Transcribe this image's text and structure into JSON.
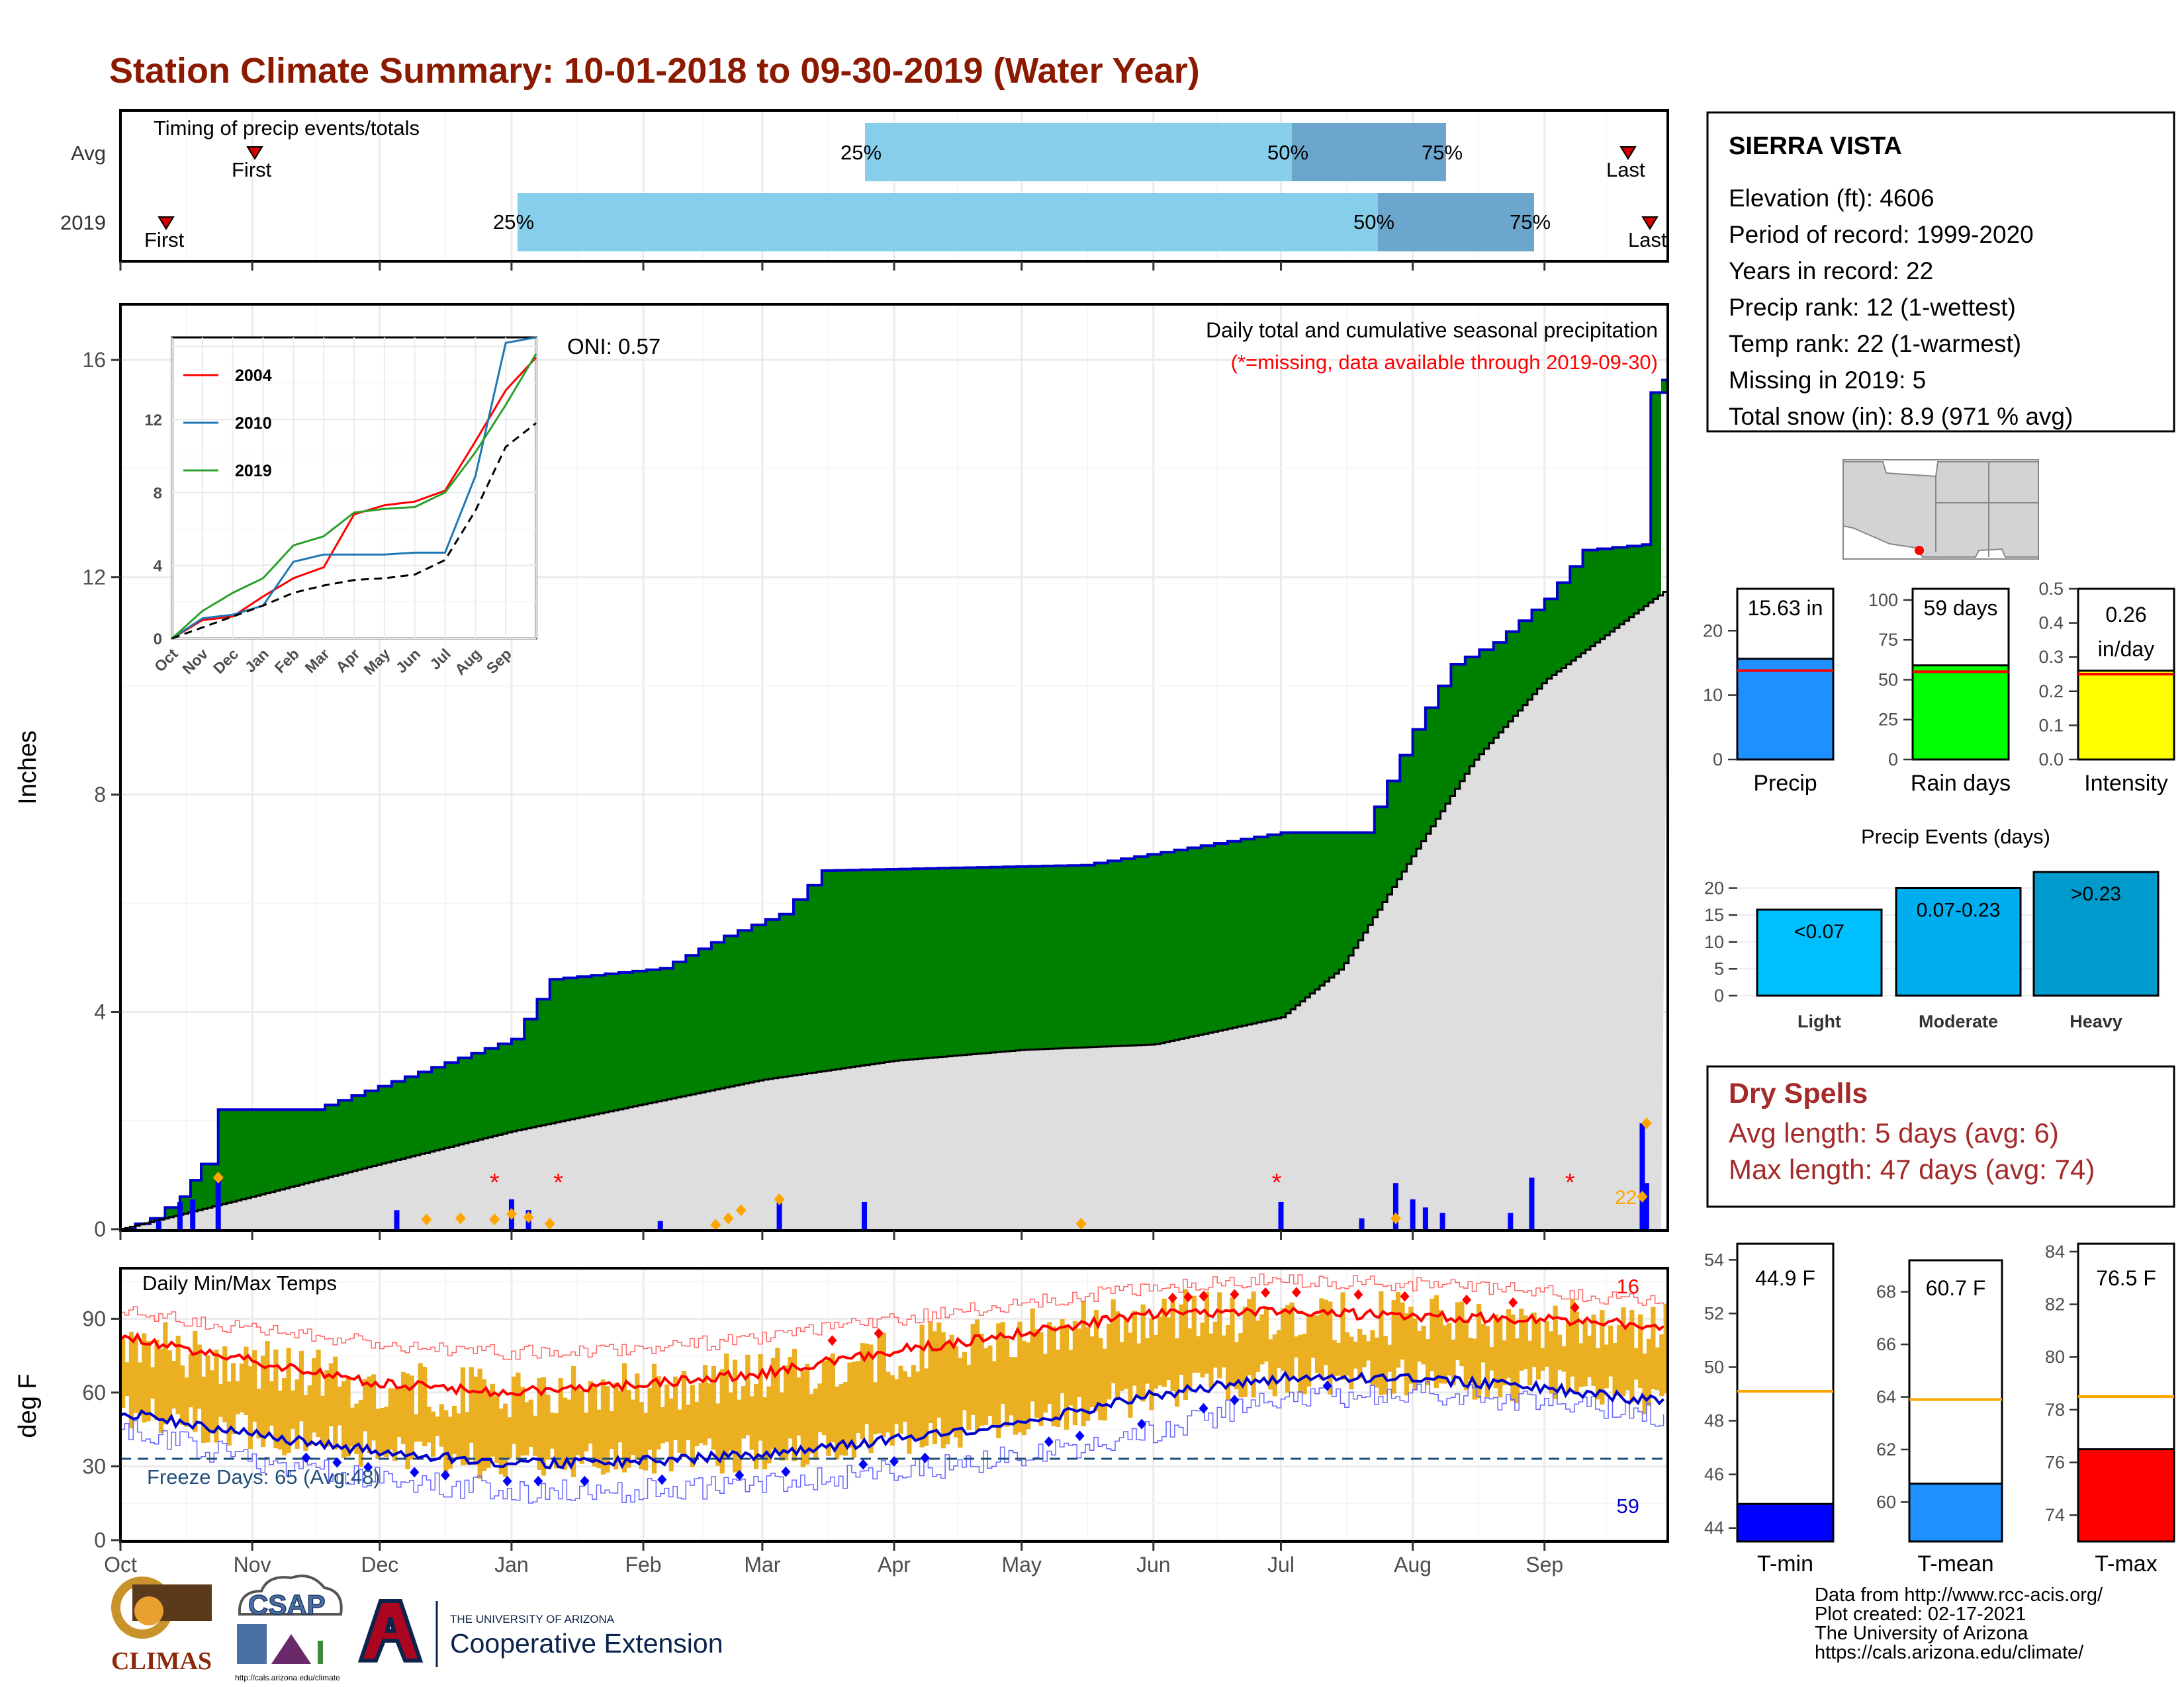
{
  "title": "Station Climate Summary: 10-01-2018 to 09-30-2019 (Water Year)",
  "colors": {
    "title": "#8B1A00",
    "precip_fill": "#008000",
    "precip_line": "#0000CC",
    "avg_fill": "#DEDEDE",
    "bar25": "#87CEEB",
    "bar50": "#6CA6CD",
    "temp_bar": "#EAB022",
    "tmax_avg": "#FF0000",
    "tmin_avg": "#0000CC",
    "dry_spell": "#A52A2A",
    "freeze_line": "#1F4E79"
  },
  "timing_panel": {
    "label": "Timing of precip events/totals",
    "rows": [
      {
        "name": "Avg",
        "first_label": "First",
        "last_label": "Last",
        "p25": "25%",
        "p50": "50%",
        "p75": "75%"
      },
      {
        "name": "2019",
        "first_label": "First",
        "last_label": "Last",
        "p25": "25%",
        "p50": "50%",
        "p75": "75%"
      }
    ]
  },
  "station": {
    "name": "SIERRA VISTA",
    "lines": [
      "Elevation (ft): 4606",
      "Period of record: 1999-2020",
      "Years in record: 22",
      "Precip rank: 12 (1-wettest)",
      "Temp rank: 22 (1-warmest)",
      "Missing in 2019: 5",
      "Total snow (in): 8.9 (971 % avg)"
    ]
  },
  "precip_panel": {
    "title": "Daily total and cumulative seasonal precipitation",
    "subtitle": "(*=missing, data available through 2019-09-30)",
    "oni": "ONI: 0.57",
    "ylabel": "Inches",
    "yticks": [
      "0",
      "4",
      "8",
      "12",
      "16"
    ],
    "snow_label": "22"
  },
  "inset": {
    "legend": [
      "2004",
      "2010",
      "2019"
    ],
    "yticks": [
      "0",
      "4",
      "8",
      "12"
    ],
    "xticks": [
      "Oct",
      "Nov",
      "Dec",
      "Jan",
      "Feb",
      "Mar",
      "Apr",
      "May",
      "Jun",
      "Jul",
      "Aug",
      "Sep"
    ]
  },
  "temp_panel": {
    "title": "Daily Min/Max Temps",
    "ylabel": "deg F",
    "yticks": [
      "0",
      "30",
      "60",
      "90"
    ],
    "freeze_label": "Freeze Days: 65 (Avg:48)",
    "max_count": "16",
    "min_count": "59"
  },
  "months": [
    "Oct",
    "Nov",
    "Dec",
    "Jan",
    "Feb",
    "Mar",
    "Apr",
    "May",
    "Jun",
    "Jul",
    "Aug",
    "Sep"
  ],
  "small_bars": [
    {
      "label": "Precip",
      "value_text": "15.63 in",
      "ticks": [
        "0",
        "10",
        "20"
      ]
    },
    {
      "label": "Rain days",
      "value_text": "59 days",
      "ticks": [
        "0",
        "25",
        "50",
        "75",
        "100"
      ]
    },
    {
      "label": "Intensity",
      "value_text": "0.26",
      "value_text2": "in/day",
      "ticks": [
        "0.0",
        "0.1",
        "0.2",
        "0.3",
        "0.4",
        "0.5"
      ]
    }
  ],
  "events": {
    "title": "Precip Events (days)",
    "ticks": [
      "0",
      "5",
      "10",
      "15",
      "20"
    ],
    "bars": [
      {
        "label": "Light",
        "range": "<0.07"
      },
      {
        "label": "Moderate",
        "range": "0.07-0.23"
      },
      {
        "label": "Heavy",
        "range": ">0.23"
      }
    ]
  },
  "dry_spells": {
    "title": "Dry Spells",
    "avg_length": "Avg length: 5 days (avg: 6)",
    "max_length": "Max length: 47 days (avg: 74)"
  },
  "temp_bars": [
    {
      "label": "T-min",
      "value_text": "44.9 F",
      "ticks": [
        "44",
        "46",
        "48",
        "50",
        "52",
        "54"
      ]
    },
    {
      "label": "T-mean",
      "value_text": "60.7 F",
      "ticks": [
        "60",
        "62",
        "64",
        "66",
        "68"
      ]
    },
    {
      "label": "T-max",
      "value_text": "76.5 F",
      "ticks": [
        "74",
        "76",
        "78",
        "80",
        "82",
        "84"
      ]
    }
  ],
  "logos": {
    "climas": "CLIMAS",
    "csap": "CSAP",
    "csap_url": "http://cals.arizona.edu/climate",
    "ua_small": "THE UNIVERSITY OF ARIZONA",
    "ua_big": "Cooperative Extension"
  },
  "footer": [
    "Data from http://www.rcc-acis.org/",
    "Plot created: 02-17-2021",
    "The University of Arizona",
    "https://cals.arizona.edu/climate/"
  ],
  "chart_data": [
    {
      "type": "area",
      "name": "cumulative seasonal precipitation",
      "x_units": "date",
      "xlim": [
        "2018-10-01",
        "2019-09-30"
      ],
      "ylim": [
        0,
        17
      ],
      "series": [
        {
          "name": "2019",
          "x": [
            "2018-10-01",
            "2018-10-08",
            "2018-10-15",
            "2018-10-20",
            "2018-10-24",
            "2018-11-15",
            "2019-01-01",
            "2019-01-10",
            "2019-02-05",
            "2019-02-20",
            "2019-03-05",
            "2019-03-15",
            "2019-05-15",
            "2019-07-01",
            "2019-07-20",
            "2019-08-01",
            "2019-08-10",
            "2019-08-20",
            "2019-09-01",
            "2019-09-10",
            "2019-09-24",
            "2019-09-26",
            "2019-09-30"
          ],
          "values": [
            0,
            0.2,
            0.6,
            1.2,
            2.2,
            2.2,
            3.5,
            4.6,
            4.8,
            5.4,
            5.8,
            6.6,
            6.7,
            7.3,
            7.3,
            9.2,
            10.4,
            10.8,
            11.6,
            12.5,
            12.6,
            15.4,
            15.63
          ]
        },
        {
          "name": "",
          "x": [
            "2018-10-01",
            "2018-11-01",
            "2018-12-01",
            "2019-01-01",
            "2019-02-01",
            "2019-03-01",
            "2019-04-01",
            "2019-05-01",
            "2019-06-01",
            "2019-07-01",
            "2019-07-15",
            "2019-08-01",
            "2019-08-15",
            "2019-09-01",
            "2019-09-30"
          ],
          "values": [
            0,
            0.6,
            1.2,
            1.8,
            2.3,
            2.75,
            3.1,
            3.3,
            3.4,
            3.9,
            4.8,
            6.9,
            8.6,
            10.1,
            11.8
          ]
        }
      ]
    },
    {
      "type": "bar",
      "name": "daily precipitation 2019",
      "x": [
        "2018-10-10",
        "2018-10-15",
        "2018-10-18",
        "2018-10-24",
        "2018-12-05",
        "2019-01-01",
        "2019-01-05",
        "2019-02-05",
        "2019-03-05",
        "2019-03-25",
        "2019-07-01",
        "2019-07-20",
        "2019-07-28",
        "2019-08-01",
        "2019-08-04",
        "2019-08-08",
        "2019-08-24",
        "2019-08-29",
        "2019-09-24",
        "2019-09-25"
      ],
      "values": [
        0.15,
        0.5,
        0.55,
        0.95,
        0.35,
        0.55,
        0.35,
        0.15,
        0.5,
        0.5,
        0.5,
        0.2,
        0.85,
        0.55,
        0.4,
        0.3,
        0.3,
        0.95,
        1.95,
        0.85
      ]
    },
    {
      "type": "line",
      "name": "inset cumulative precip",
      "categories": [
        "Oct",
        "Nov",
        "Dec",
        "Jan",
        "Feb",
        "Mar",
        "Apr",
        "May",
        "Jun",
        "Jul",
        "Aug",
        "Sep",
        "End"
      ],
      "ylim": [
        0,
        16.5
      ],
      "series": [
        {
          "name": "2004",
          "values": [
            0,
            1.0,
            1.2,
            2.3,
            3.3,
            3.9,
            6.8,
            7.3,
            7.5,
            8.1,
            10.8,
            13.6,
            15.4
          ]
        },
        {
          "name": "2010",
          "values": [
            0,
            1.1,
            1.3,
            1.8,
            4.2,
            4.6,
            4.6,
            4.6,
            4.7,
            4.7,
            8.9,
            16.2,
            16.5
          ]
        },
        {
          "name": "2019",
          "values": [
            0,
            1.5,
            2.5,
            3.3,
            5.1,
            5.6,
            6.9,
            7.1,
            7.2,
            8.0,
            10.2,
            12.8,
            15.6
          ]
        },
        {
          "name": "",
          "values": [
            0,
            0.6,
            1.2,
            1.8,
            2.5,
            2.9,
            3.2,
            3.3,
            3.5,
            4.3,
            7.0,
            10.5,
            11.8
          ]
        }
      ]
    },
    {
      "type": "line",
      "name": "daily temperatures",
      "categories": [
        "Oct",
        "Nov",
        "Dec",
        "Jan",
        "Feb",
        "Mar",
        "Apr",
        "May",
        "Jun",
        "Jul",
        "Aug",
        "Sep",
        "End"
      ],
      "ylim": [
        0,
        110
      ],
      "series": [
        {
          "name": "",
          "values": [
            83,
            73,
            64,
            60,
            63,
            68,
            77,
            84,
            92,
            93,
            91,
            90,
            87
          ]
        },
        {
          "name": "",
          "values": [
            52,
            43,
            36,
            31,
            32,
            35,
            41,
            48,
            59,
            66,
            66,
            62,
            56
          ]
        },
        {
          "name": "",
          "values": [
            93,
            86,
            80,
            76,
            78,
            82,
            90,
            96,
            103,
            106,
            104,
            101,
            96
          ]
        },
        {
          "name": "",
          "values": [
            45,
            33,
            25,
            20,
            20,
            23,
            28,
            34,
            44,
            58,
            60,
            56,
            50
          ]
        }
      ]
    },
    {
      "type": "bar",
      "name": "season summary",
      "categories": [
        "Precip",
        "Rain days",
        "Intensity"
      ],
      "values": [
        15.63,
        59,
        0.26
      ],
      "averages": [
        13.8,
        55,
        0.25
      ]
    },
    {
      "type": "bar",
      "name": "Precip Events (days)",
      "categories": [
        "Light",
        "Moderate",
        "Heavy"
      ],
      "values": [
        16,
        20,
        23
      ],
      "ylim": [
        0,
        24
      ]
    },
    {
      "type": "bar",
      "name": "temperature summary",
      "categories": [
        "T-min",
        "T-mean",
        "T-max"
      ],
      "values": [
        44.9,
        60.7,
        76.5
      ],
      "averages": [
        49.1,
        63.9,
        78.5
      ]
    }
  ]
}
